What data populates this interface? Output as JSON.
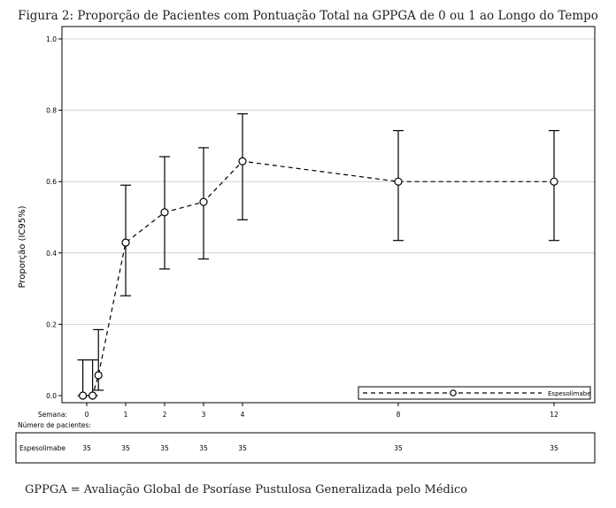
{
  "figure": {
    "title": "Figura 2: Proporção de Pacientes com Pontuação Total na GPPGA de 0 ou 1 ao Longo do Tempo",
    "footnote": "GPPGA = Avaliação Global de Psoríase Pustulosa Generalizada pelo Médico"
  },
  "chart_data": {
    "type": "line",
    "ylabel": "Proporção (IC95%)",
    "ylim": [
      0,
      1.0
    ],
    "yticks": [
      "0.0",
      "0.2",
      "0.4",
      "0.6",
      "0.8",
      "1.0"
    ],
    "x_axis_label": "Semana:",
    "xticks": [
      "0",
      "1",
      "2",
      "3",
      "4",
      "8",
      "12"
    ],
    "grid": true,
    "series": [
      {
        "name": "Espesolimabe",
        "line_style": "dashed",
        "marker": "open-circle",
        "color": "#000000",
        "points": [
          {
            "x": -0.1,
            "y": 0.0,
            "lower": 0.0,
            "upper": 0.1
          },
          {
            "x": 0.15,
            "y": 0.0,
            "lower": 0.0,
            "upper": 0.1
          },
          {
            "x": 0.3,
            "y": 0.057,
            "lower": 0.015,
            "upper": 0.185
          },
          {
            "x": 1,
            "y": 0.429,
            "lower": 0.28,
            "upper": 0.59
          },
          {
            "x": 2,
            "y": 0.514,
            "lower": 0.355,
            "upper": 0.67
          },
          {
            "x": 3,
            "y": 0.543,
            "lower": 0.383,
            "upper": 0.695
          },
          {
            "x": 4,
            "y": 0.657,
            "lower": 0.493,
            "upper": 0.79
          },
          {
            "x": 8,
            "y": 0.6,
            "lower": 0.435,
            "upper": 0.743
          },
          {
            "x": 12,
            "y": 0.6,
            "lower": 0.435,
            "upper": 0.743
          }
        ]
      }
    ],
    "legend": {
      "label": "Espesolimabe",
      "placement": "bottom-right"
    },
    "risk_table": {
      "title": "Número de pacientes:",
      "rows": [
        {
          "label": "Espesolimabe",
          "values": [
            "35",
            "35",
            "35",
            "35",
            "35",
            "35",
            "35"
          ]
        }
      ]
    }
  }
}
